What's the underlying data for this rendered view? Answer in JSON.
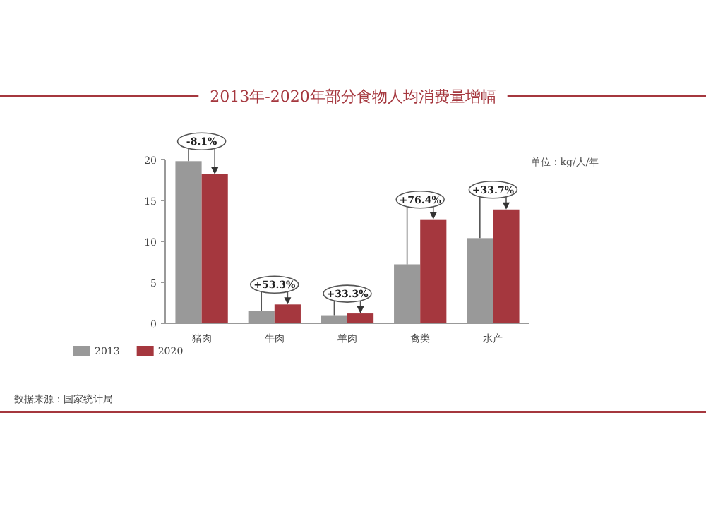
{
  "chart_data": {
    "type": "bar",
    "title": "2013年-2020年部分食物人均消费量增幅",
    "subtitle": "单位：kg/人/年",
    "categories": [
      "猪肉",
      "牛肉",
      "羊肉",
      "禽类",
      "水产"
    ],
    "series": [
      {
        "name": "2013",
        "color": "#999999",
        "values": [
          19.8,
          1.5,
          0.9,
          7.2,
          10.4
        ]
      },
      {
        "name": "2020",
        "color": "#a5373e",
        "values": [
          18.2,
          2.3,
          1.2,
          12.7,
          13.9
        ]
      }
    ],
    "ylim": [
      0,
      20
    ],
    "yticks": [
      0,
      5,
      10,
      15,
      20
    ],
    "legend": "bottom left",
    "grid": false,
    "annotations": [
      {
        "text": "-8.1%",
        "x": "猪肉",
        "y": 18.2
      },
      {
        "text": "+53.3%",
        "x": "牛肉",
        "y": 2.3
      },
      {
        "text": "+33.3%",
        "x": "羊肉",
        "y": 1.2
      },
      {
        "text": "+76.4%",
        "x": "禽类",
        "y": 12.7
      },
      {
        "text": "+33.7%",
        "x": "水产",
        "y": 13.9
      },
      "数据来源：国家统计局"
    ]
  }
}
